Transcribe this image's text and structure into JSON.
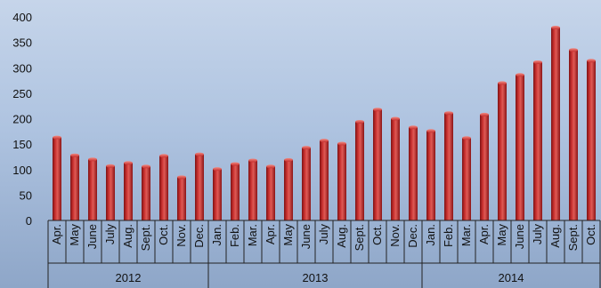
{
  "chart_data": {
    "type": "bar",
    "title": "",
    "xlabel": "",
    "ylabel": "",
    "ylim": [
      0,
      400
    ],
    "yticks": [
      0,
      50,
      100,
      150,
      200,
      250,
      300,
      350,
      400
    ],
    "grid": false,
    "legend": "none",
    "bar_color": "#c0262a",
    "categories": [
      "Apr.",
      "May",
      "June",
      "July",
      "Aug.",
      "Sept.",
      "Oct.",
      "Nov.",
      "Dec.",
      "Jan.",
      "Feb.",
      "Mar.",
      "Apr.",
      "May",
      "June",
      "July",
      "Aug.",
      "Sept.",
      "Oct.",
      "Nov.",
      "Dec.",
      "Jan.",
      "Feb.",
      "Mar.",
      "Apr.",
      "May",
      "June",
      "July",
      "Aug.",
      "Sept.",
      "Oct."
    ],
    "groups": [
      {
        "label": "2012",
        "count": 9
      },
      {
        "label": "2013",
        "count": 12
      },
      {
        "label": "2014",
        "count": 10
      }
    ],
    "values": [
      163,
      128,
      120,
      107,
      113,
      106,
      127,
      85,
      130,
      101,
      111,
      118,
      106,
      119,
      143,
      157,
      151,
      194,
      218,
      200,
      183,
      176,
      211,
      162,
      208,
      270,
      286,
      311,
      379,
      335,
      314
    ]
  }
}
